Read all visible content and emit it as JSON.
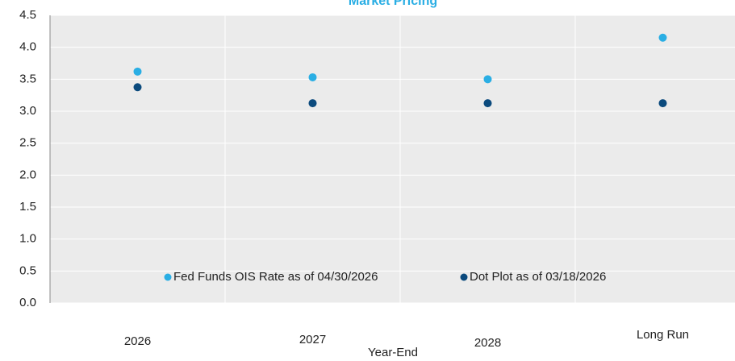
{
  "chart_data": {
    "type": "scatter",
    "title": "Market Pricing",
    "x_label": "Year-End",
    "categories": [
      "2026",
      "2027",
      "2028",
      "Long Run"
    ],
    "series": [
      {
        "name": "Fed Funds OIS Rate as of 04/30/2026",
        "color": "#2aaee4",
        "values": [
          3.62,
          3.53,
          3.5,
          4.15
        ]
      },
      {
        "name": "Dot Plot as of 03/18/2026",
        "color": "#0b4a7d",
        "values": [
          3.375,
          3.125,
          3.125,
          3.125
        ]
      }
    ],
    "ylim": [
      0,
      4.5
    ],
    "yticks": [
      {
        "value": 0,
        "label": "0.0"
      },
      0.5,
      {
        "value": 1,
        "label": "1.0"
      },
      1.5,
      {
        "value": 2,
        "label": "2.0"
      },
      2.5,
      {
        "value": 3,
        "label": "3.0"
      },
      3.5,
      {
        "value": 4,
        "label": "4.0"
      },
      4.5
    ],
    "grid": true,
    "legend": "bottom"
  }
}
